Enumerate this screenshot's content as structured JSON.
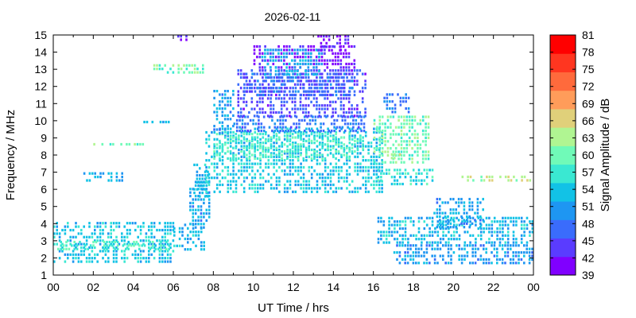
{
  "chart_data": {
    "type": "heatmap",
    "title": "2026-02-11",
    "xlabel": "UT Time / hrs",
    "ylabel": "Frequency / MHz",
    "colorbar_label": "Signal Amplitude / dB",
    "xlim": [
      0,
      24
    ],
    "ylim": [
      1,
      15
    ],
    "x_ticks": [
      "00",
      "02",
      "04",
      "06",
      "08",
      "10",
      "12",
      "14",
      "16",
      "18",
      "20",
      "22",
      "00"
    ],
    "x_tick_values": [
      0,
      2,
      4,
      6,
      8,
      10,
      12,
      14,
      16,
      18,
      20,
      22,
      24
    ],
    "y_ticks": [
      "1",
      "2",
      "3",
      "4",
      "5",
      "6",
      "7",
      "8",
      "9",
      "10",
      "11",
      "12",
      "13",
      "14",
      "15"
    ],
    "y_tick_values": [
      1,
      2,
      3,
      4,
      5,
      6,
      7,
      8,
      9,
      10,
      11,
      12,
      13,
      14,
      15
    ],
    "colorbar_ticks": [
      "39",
      "42",
      "45",
      "48",
      "51",
      "54",
      "57",
      "60",
      "63",
      "66",
      "69",
      "72",
      "75",
      "78",
      "81"
    ],
    "colorbar_colors": [
      "#8000ff",
      "#5a3cff",
      "#3a6cfc",
      "#1e96f2",
      "#12c2e6",
      "#3ae8d2",
      "#70fab8",
      "#b0f592",
      "#e0d07a",
      "#ff9c5a",
      "#ff6a3c",
      "#ff3620",
      "#ff0000"
    ],
    "grid": false,
    "legend": "colorbar-right",
    "regions": [
      {
        "x": [
          0.0,
          6.0
        ],
        "y": [
          1.8,
          4.1
        ],
        "level": 54
      },
      {
        "x": [
          0.2,
          5.8
        ],
        "y": [
          2.4,
          3.0
        ],
        "level": 58
      },
      {
        "x": [
          6.0,
          7.6
        ],
        "y": [
          2.5,
          4.0
        ],
        "level": 53
      },
      {
        "x": [
          6.8,
          7.8
        ],
        "y": [
          3.8,
          6.5
        ],
        "level": 51
      },
      {
        "x": [
          7.0,
          7.8
        ],
        "y": [
          5.5,
          7.5
        ],
        "level": 53
      },
      {
        "x": [
          7.6,
          16.5
        ],
        "y": [
          5.8,
          9.6
        ],
        "level": 54
      },
      {
        "x": [
          8.0,
          15.5
        ],
        "y": [
          7.8,
          9.3
        ],
        "level": 58
      },
      {
        "x": [
          8.0,
          9.0
        ],
        "y": [
          9.3,
          11.8
        ],
        "level": 51
      },
      {
        "x": [
          9.0,
          15.6
        ],
        "y": [
          9.4,
          10.3
        ],
        "level": 48
      },
      {
        "x": [
          9.2,
          15.6
        ],
        "y": [
          10.3,
          13.0
        ],
        "level": 45
      },
      {
        "x": [
          9.5,
          15.0
        ],
        "y": [
          11.5,
          12.8
        ],
        "level": 47
      },
      {
        "x": [
          10.0,
          15.0
        ],
        "y": [
          13.0,
          14.4
        ],
        "level": 41
      },
      {
        "x": [
          10.4,
          13.5
        ],
        "y": [
          12.6,
          14.2
        ],
        "level": 52
      },
      {
        "x": [
          13.2,
          14.8
        ],
        "y": [
          14.0,
          15.0
        ],
        "level": 41
      },
      {
        "x": [
          16.0,
          18.8
        ],
        "y": [
          7.5,
          10.3
        ],
        "level": 60
      },
      {
        "x": [
          16.5,
          17.8
        ],
        "y": [
          10.4,
          11.6
        ],
        "level": 48
      },
      {
        "x": [
          16.2,
          19.0
        ],
        "y": [
          6.3,
          7.2
        ],
        "level": 56
      },
      {
        "x": [
          16.6,
          17.3
        ],
        "y": [
          7.7,
          8.1
        ],
        "level": 66
      },
      {
        "x": [
          16.2,
          24.0
        ],
        "y": [
          2.8,
          4.4
        ],
        "level": 53
      },
      {
        "x": [
          17.0,
          24.0
        ],
        "y": [
          1.7,
          2.8
        ],
        "level": 51
      },
      {
        "x": [
          19.0,
          21.5
        ],
        "y": [
          3.8,
          5.5
        ],
        "level": 51
      },
      {
        "x": [
          20.0,
          23.8
        ],
        "y": [
          6.4,
          6.8
        ],
        "level": 64
      },
      {
        "x": [
          5.0,
          7.5
        ],
        "y": [
          12.8,
          13.3
        ],
        "level": 60
      },
      {
        "x": [
          6.2,
          6.8
        ],
        "y": [
          14.7,
          15.0
        ],
        "level": 41
      },
      {
        "x": [
          2.0,
          4.5
        ],
        "y": [
          8.5,
          8.7
        ],
        "level": 60
      },
      {
        "x": [
          4.5,
          6.2
        ],
        "y": [
          9.8,
          10.0
        ],
        "level": 52
      },
      {
        "x": [
          1.5,
          3.5
        ],
        "y": [
          6.4,
          7.0
        ],
        "level": 52
      }
    ]
  }
}
